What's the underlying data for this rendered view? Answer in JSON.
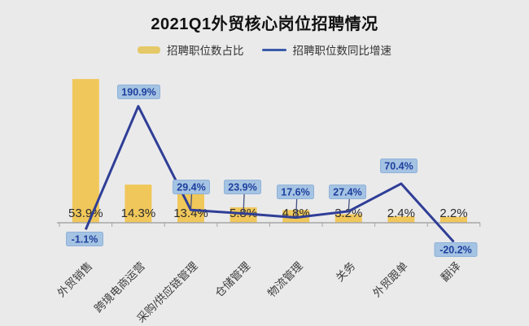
{
  "title": "2021Q1外贸核心岗位招聘情况",
  "legend": {
    "bar_label": "招聘职位数占比",
    "line_label": "招聘职位数同比增速"
  },
  "colors": {
    "background": "#eaeaeb",
    "bar": "#f0c75a",
    "legend_bar_swatch": "#e5c968",
    "line": "#2f3e96",
    "legend_line_swatch": "#3a5ba9",
    "badge_bg": "#a5c3e2",
    "badge_border": "#8fb2d8",
    "badge_text": "#1d3f9e",
    "bar_value_text": "#2b2b2b",
    "category_text": "#3d3d3d",
    "axis": "#a6a6a6",
    "title_text": "#111111",
    "legend_text": "#333333"
  },
  "chart_data": {
    "type": "combo-bar-line",
    "title": "2021Q1外贸核心岗位招聘情况",
    "categories": [
      "外贸销售",
      "跨境电商运营",
      "采购/供应链管理",
      "仓储管理",
      "物流管理",
      "关务",
      "外贸跟单",
      "翻译"
    ],
    "series": [
      {
        "name": "招聘职位数占比",
        "type": "bar",
        "unit": "%",
        "values": [
          53.9,
          14.3,
          13.4,
          5.8,
          4.8,
          3.2,
          2.4,
          2.2
        ],
        "labels": [
          "53.9%",
          "14.3%",
          "13.4%",
          "5.8%",
          "4.8%",
          "3.2%",
          "2.4%",
          "2.2%"
        ]
      },
      {
        "name": "招聘职位数同比增速",
        "type": "line",
        "unit": "%",
        "values": [
          -1.1,
          190.9,
          29.4,
          23.9,
          17.6,
          27.4,
          70.4,
          -20.2
        ],
        "labels": [
          "-1.1%",
          "190.9%",
          "29.4%",
          "23.9%",
          "17.6%",
          "27.4%",
          "70.4%",
          "-20.2%"
        ]
      }
    ],
    "legend_position": "top",
    "grid": false,
    "y_axis_visible": false,
    "x_axis_line": true,
    "value_labels_visible": true,
    "category_label_rotation": -45
  }
}
